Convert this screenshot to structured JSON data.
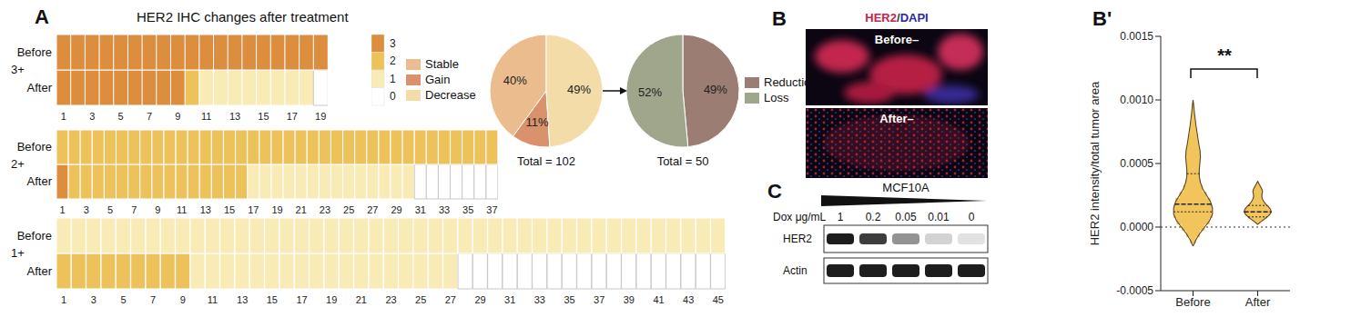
{
  "chart_data": [
    {
      "type": "heatmap",
      "panel": "A",
      "title": "HER2 IHC changes after treatment",
      "rows": [
        "Before",
        "After"
      ],
      "colorbar": {
        "range": [
          0,
          3
        ],
        "ticks": [
          3,
          2,
          1,
          0
        ],
        "colors": [
          "#ffffff",
          "#f9ebb5",
          "#eec25a",
          "#dc8d3e"
        ]
      },
      "groups": [
        {
          "name": "3+",
          "categories": [
            1,
            null,
            3,
            null,
            5,
            null,
            7,
            null,
            9,
            null,
            11,
            null,
            13,
            null,
            15,
            null,
            17,
            null,
            19
          ],
          "before": [
            3,
            3,
            3,
            3,
            3,
            3,
            3,
            3,
            3,
            3,
            3,
            3,
            3,
            3,
            3,
            3,
            3,
            3,
            3
          ],
          "after": [
            3,
            3,
            3,
            3,
            3,
            3,
            3,
            3,
            3,
            2,
            1,
            1,
            1,
            1,
            1,
            1,
            1,
            1,
            0
          ]
        },
        {
          "name": "2+",
          "categories": [
            1,
            null,
            3,
            null,
            5,
            null,
            7,
            null,
            9,
            null,
            11,
            null,
            13,
            null,
            15,
            null,
            17,
            null,
            19,
            null,
            21,
            null,
            23,
            null,
            25,
            null,
            27,
            null,
            29,
            null,
            31,
            null,
            33,
            null,
            35,
            null,
            37
          ],
          "before": [
            2,
            2,
            2,
            2,
            2,
            2,
            2,
            2,
            2,
            2,
            2,
            2,
            2,
            2,
            2,
            2,
            2,
            2,
            2,
            2,
            2,
            2,
            2,
            2,
            2,
            2,
            2,
            2,
            2,
            2,
            2,
            2,
            2,
            2,
            2,
            2,
            2
          ],
          "after": [
            3,
            2,
            2,
            2,
            2,
            2,
            2,
            2,
            2,
            2,
            2,
            2,
            2,
            2,
            2,
            2,
            1,
            1,
            1,
            1,
            1,
            1,
            1,
            1,
            1,
            1,
            1,
            1,
            1,
            1,
            0,
            0,
            0,
            0,
            0,
            0,
            0
          ]
        },
        {
          "name": "1+",
          "categories": [
            1,
            null,
            3,
            null,
            5,
            null,
            7,
            null,
            9,
            null,
            11,
            null,
            13,
            null,
            15,
            null,
            17,
            null,
            19,
            null,
            21,
            null,
            23,
            null,
            25,
            null,
            27,
            null,
            29,
            null,
            31,
            null,
            33,
            null,
            35,
            null,
            37,
            null,
            39,
            null,
            41,
            null,
            43,
            null,
            45
          ],
          "before": [
            1,
            1,
            1,
            1,
            1,
            1,
            1,
            1,
            1,
            1,
            1,
            1,
            1,
            1,
            1,
            1,
            1,
            1,
            1,
            1,
            1,
            1,
            1,
            1,
            1,
            1,
            1,
            1,
            1,
            1,
            1,
            1,
            1,
            1,
            1,
            1,
            1,
            1,
            1,
            1,
            1,
            1,
            1,
            1,
            1
          ],
          "after": [
            2,
            2,
            2,
            2,
            2,
            2,
            2,
            2,
            2,
            1,
            1,
            1,
            1,
            1,
            1,
            1,
            1,
            1,
            1,
            1,
            1,
            1,
            1,
            1,
            1,
            1,
            1,
            0,
            0,
            0,
            0,
            0,
            0,
            0,
            0,
            0,
            0,
            0,
            0,
            0,
            0,
            0,
            0,
            0,
            0
          ]
        }
      ]
    },
    {
      "type": "pie",
      "categories": [
        "Stable",
        "Gain",
        "Decrease"
      ],
      "values": [
        40,
        11,
        49
      ],
      "value_labels": [
        "40%",
        "11%",
        "49%"
      ],
      "colors": [
        "#ebbd8e",
        "#d9926b",
        "#f3dca8"
      ],
      "data_labels": true,
      "annotation": "Total = 102"
    },
    {
      "type": "pie",
      "categories": [
        "Reduction",
        "Loss"
      ],
      "values": [
        49,
        52
      ],
      "value_labels": [
        "49%",
        "52%"
      ],
      "colors": [
        "#9c7d73",
        "#a0a68c"
      ],
      "data_labels": true,
      "annotation": "Total = 50"
    },
    {
      "type": "image",
      "panel": "B",
      "title": "HER2/DAPI",
      "images": [
        "Before–",
        "After–"
      ]
    },
    {
      "type": "violin",
      "panel": "B'",
      "y_label": "HER2 intensity/total tumor area",
      "categories": [
        "Before",
        "After"
      ],
      "color": "#f2c55c",
      "ylim": [
        -0.0005,
        0.0015
      ],
      "yticks": [
        -0.0005,
        {
          "value": 0,
          "label": "0.0000"
        },
        0.0005,
        {
          "value": 0.001,
          "label": "0.0010"
        },
        0.0015
      ],
      "reference_line": 0,
      "annotation": "**",
      "violins": [
        {
          "y": [
            -0.00015,
            -0.0001,
            -5e-05,
            0,
            5e-05,
            0.0001,
            0.00015,
            0.0002,
            0.00025,
            0.0003,
            0.00035,
            0.0004,
            0.00045,
            0.0005,
            0.00055,
            0.0006,
            0.00065,
            0.0007,
            0.00075,
            0.0008,
            0.00085,
            0.0009,
            0.00095,
            0.001
          ],
          "density": [
            0,
            0.15,
            0.35,
            0.6,
            0.85,
            1.0,
            1.0,
            0.9,
            0.7,
            0.5,
            0.38,
            0.32,
            0.32,
            0.35,
            0.38,
            0.36,
            0.3,
            0.25,
            0.2,
            0.15,
            0.11,
            0.07,
            0.04,
            0
          ],
          "median": 0.00018,
          "quartiles": [
            0.00012,
            0.00042
          ]
        },
        {
          "y": [
            2e-05,
            4e-05,
            6e-05,
            8e-05,
            0.0001,
            0.00012,
            0.00014,
            0.00016,
            0.00018,
            0.0002,
            0.00022,
            0.00024,
            0.00026,
            0.00028,
            0.0003,
            0.00032,
            0.00034,
            0.00036
          ],
          "density": [
            0,
            0.14,
            0.32,
            0.49,
            0.63,
            0.7,
            0.66,
            0.56,
            0.42,
            0.32,
            0.25,
            0.21,
            0.22,
            0.25,
            0.21,
            0.14,
            0.07,
            0
          ],
          "median": 0.00012,
          "quartiles": [
            8e-05,
            0.00017
          ]
        }
      ]
    },
    {
      "type": "blot",
      "panel": "C",
      "title": "MCF10A",
      "axis_label": "Dox μg/mL",
      "categories": [
        1,
        0.2,
        0.05,
        0.01,
        0
      ],
      "series": [
        {
          "name": "HER2",
          "values": [
            1,
            0.85,
            0.45,
            0.15,
            0.08
          ]
        },
        {
          "name": "Actin",
          "values": [
            1,
            1,
            1,
            1,
            1
          ]
        }
      ]
    }
  ]
}
